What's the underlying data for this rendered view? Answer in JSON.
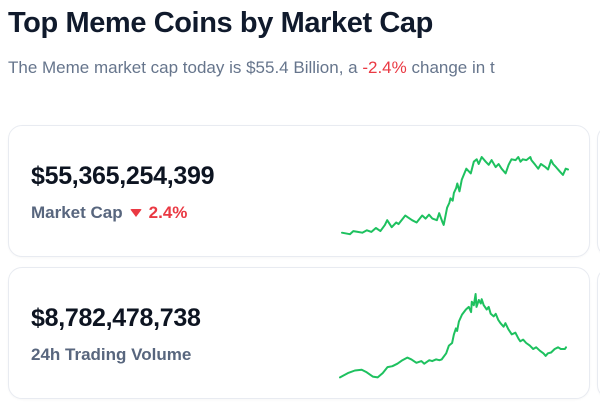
{
  "colors": {
    "title": "#101a2c",
    "subtitle": "#66758c",
    "value": "#0d1421",
    "label": "#58667e",
    "red": "#ea3943",
    "green": "#1ec15f",
    "card_border": "#e8ebf1",
    "card_bg": "#ffffff",
    "page_bg": "#ffffff"
  },
  "header": {
    "title": "Top Meme Coins by Market Cap",
    "subtitle_prefix": "The Meme market cap today is $55.4 Billion, a ",
    "subtitle_change": "-2.4%",
    "subtitle_suffix": " change in t"
  },
  "cards": [
    {
      "value": "$55,365,254,399",
      "label": "Market Cap",
      "change": "2.4%",
      "change_direction": "down"
    },
    {
      "value": "$8,782,478,738",
      "label": "24h Trading Volume"
    }
  ],
  "chart_data": [
    {
      "type": "line",
      "title": "Market Cap",
      "style": "sparkline",
      "color": "#1ec15f",
      "points_format": "[x_percent, value_percent] (value 100 = highest point of line)",
      "points": [
        [
          0,
          3
        ],
        [
          3.5,
          1
        ],
        [
          5,
          5
        ],
        [
          7,
          4
        ],
        [
          9,
          3
        ],
        [
          11,
          6
        ],
        [
          13,
          4
        ],
        [
          15,
          9
        ],
        [
          17,
          5
        ],
        [
          19,
          13
        ],
        [
          20,
          19
        ],
        [
          22,
          10
        ],
        [
          24,
          16
        ],
        [
          25,
          14
        ],
        [
          28,
          25
        ],
        [
          29,
          23
        ],
        [
          31,
          19
        ],
        [
          33,
          16
        ],
        [
          35.5,
          25
        ],
        [
          37,
          21
        ],
        [
          38.5,
          26
        ],
        [
          40,
          21
        ],
        [
          42,
          19
        ],
        [
          43,
          28
        ],
        [
          44.5,
          16
        ],
        [
          45,
          13
        ],
        [
          46.5,
          35
        ],
        [
          47.5,
          41
        ],
        [
          48,
          47
        ],
        [
          49,
          44
        ],
        [
          49.5,
          54
        ],
        [
          50.5,
          60
        ],
        [
          51,
          66
        ],
        [
          52,
          56
        ],
        [
          53,
          71
        ],
        [
          55,
          85
        ],
        [
          57,
          79
        ],
        [
          58.3,
          94
        ],
        [
          59.6,
          97
        ],
        [
          60.5,
          91
        ],
        [
          61.8,
          100
        ],
        [
          63.6,
          94
        ],
        [
          64.9,
          90
        ],
        [
          66.2,
          96
        ],
        [
          68,
          87
        ],
        [
          69.3,
          91
        ],
        [
          70.6,
          85
        ],
        [
          72.4,
          79
        ],
        [
          73.7,
          90
        ],
        [
          75,
          97
        ],
        [
          76.8,
          96
        ],
        [
          78,
          100
        ],
        [
          79,
          94
        ],
        [
          80,
          97
        ],
        [
          81.6,
          96
        ],
        [
          83.3,
          100
        ],
        [
          83.8,
          96
        ],
        [
          85.5,
          90
        ],
        [
          86.8,
          85
        ],
        [
          88,
          91
        ],
        [
          90,
          87
        ],
        [
          91.2,
          84
        ],
        [
          92.5,
          96
        ],
        [
          93.4,
          91
        ],
        [
          94.7,
          87
        ],
        [
          96.5,
          81
        ],
        [
          97.8,
          77
        ],
        [
          99,
          85
        ],
        [
          100,
          84
        ]
      ]
    },
    {
      "type": "line",
      "title": "24h Trading Volume",
      "style": "sparkline",
      "color": "#1ec15f",
      "points_format": "[x_percent, value_percent] (value 100 = highest point of line)",
      "points": [
        [
          0,
          3
        ],
        [
          3.5,
          8
        ],
        [
          6.6,
          11
        ],
        [
          9.6,
          12
        ],
        [
          11.8,
          9
        ],
        [
          14.5,
          4
        ],
        [
          16.7,
          3
        ],
        [
          18.9,
          8
        ],
        [
          21,
          15
        ],
        [
          23.2,
          16
        ],
        [
          25.4,
          19
        ],
        [
          27.6,
          23
        ],
        [
          29.8,
          26
        ],
        [
          31.6,
          24
        ],
        [
          33.8,
          20
        ],
        [
          36,
          22
        ],
        [
          37.3,
          19
        ],
        [
          39.5,
          23
        ],
        [
          40.8,
          22
        ],
        [
          42.5,
          24
        ],
        [
          44,
          23
        ],
        [
          45,
          24
        ],
        [
          47,
          31
        ],
        [
          48.2,
          40
        ],
        [
          49.6,
          43
        ],
        [
          50.4,
          53
        ],
        [
          51.3,
          60
        ],
        [
          51.8,
          57
        ],
        [
          52.6,
          68
        ],
        [
          54,
          76
        ],
        [
          55.7,
          82
        ],
        [
          57,
          85
        ],
        [
          58,
          79
        ],
        [
          58.3,
          91
        ],
        [
          59.2,
          87
        ],
        [
          60,
          100
        ],
        [
          60.4,
          85
        ],
        [
          61.4,
          93
        ],
        [
          62.3,
          89
        ],
        [
          62.7,
          94
        ],
        [
          63.6,
          87
        ],
        [
          64.9,
          82
        ],
        [
          65.8,
          85
        ],
        [
          66.7,
          77
        ],
        [
          68,
          74
        ],
        [
          68.9,
          77
        ],
        [
          70,
          70
        ],
        [
          71,
          66
        ],
        [
          72.4,
          62
        ],
        [
          73.2,
          66
        ],
        [
          74.5,
          59
        ],
        [
          76,
          53
        ],
        [
          77.6,
          55
        ],
        [
          79,
          48
        ],
        [
          79.8,
          45
        ],
        [
          81,
          47
        ],
        [
          82.4,
          43
        ],
        [
          84,
          40
        ],
        [
          85.5,
          36
        ],
        [
          86.8,
          38
        ],
        [
          88.5,
          34
        ],
        [
          90,
          31
        ],
        [
          91,
          28
        ],
        [
          92,
          31
        ],
        [
          93.4,
          32
        ],
        [
          95,
          36
        ],
        [
          96.5,
          38
        ],
        [
          97.7,
          36
        ],
        [
          99.5,
          36
        ],
        [
          100,
          38
        ]
      ]
    }
  ]
}
